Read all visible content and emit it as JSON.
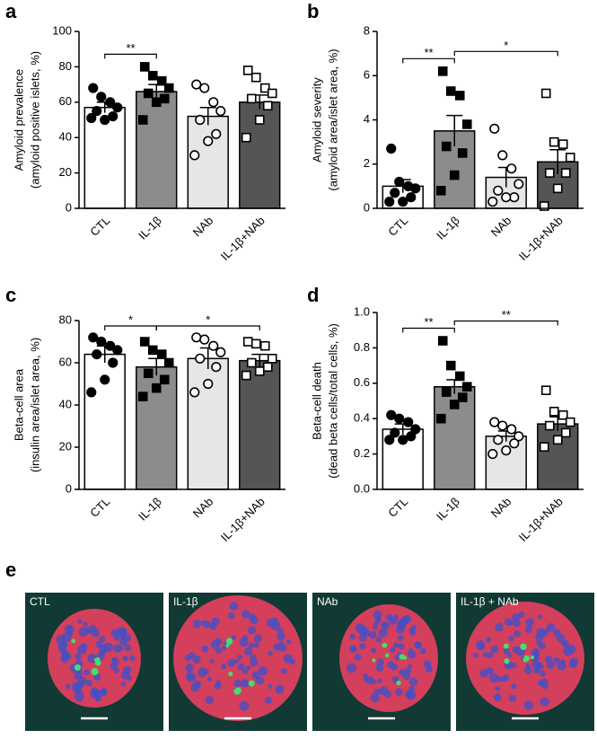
{
  "chart_data": [
    {
      "type": "bar",
      "panel": "a",
      "ylabel": [
        "Amyloid prevalence",
        "(amyloid positive islets, %)"
      ],
      "categories": [
        "CTL",
        "IL-1β",
        "NAb",
        "IL-1β+NAb"
      ],
      "values": [
        57,
        66,
        52,
        60
      ],
      "errors": [
        3,
        4,
        5,
        4
      ],
      "points": [
        [
          68,
          63,
          60,
          57,
          55,
          52,
          50,
          51
        ],
        [
          80,
          75,
          72,
          68,
          65,
          62,
          60,
          50
        ],
        [
          70,
          68,
          60,
          55,
          50,
          42,
          38,
          30
        ],
        [
          78,
          74,
          68,
          65,
          62,
          58,
          50,
          40
        ]
      ],
      "bar_colors": [
        "#ffffff",
        "#8c8c8c",
        "#e6e6e6",
        "#555555"
      ],
      "marker_shapes": [
        "circle",
        "square",
        "circle",
        "square"
      ],
      "marker_fills": [
        "#000000",
        "#000000",
        "#ffffff",
        "#ffffff"
      ],
      "ylim": [
        0,
        100
      ],
      "yticks": [
        0,
        20,
        40,
        60,
        80,
        100
      ],
      "brackets": [
        {
          "from": 0,
          "to": 1,
          "label": "**"
        }
      ]
    },
    {
      "type": "bar",
      "panel": "b",
      "ylabel": [
        "Amyloid severity",
        "(amyloid area/islet area, %)"
      ],
      "categories": [
        "CTL",
        "IL-1β",
        "NAb",
        "IL-1β+NAb"
      ],
      "values": [
        1.0,
        3.5,
        1.4,
        2.1
      ],
      "errors": [
        0.3,
        0.7,
        0.45,
        0.55
      ],
      "points": [
        [
          2.7,
          1.2,
          1.0,
          0.9,
          0.7,
          0.5,
          0.3,
          0.3
        ],
        [
          6.2,
          5.3,
          5.1,
          3.8,
          2.8,
          2.5,
          1.5,
          0.8
        ],
        [
          3.6,
          2.4,
          1.8,
          1.1,
          0.8,
          0.5,
          0.5,
          0.3
        ],
        [
          5.2,
          3.0,
          2.9,
          2.3,
          1.6,
          1.6,
          0.9,
          0.1
        ]
      ],
      "bar_colors": [
        "#ffffff",
        "#8c8c8c",
        "#e6e6e6",
        "#555555"
      ],
      "marker_shapes": [
        "circle",
        "square",
        "circle",
        "square"
      ],
      "marker_fills": [
        "#000000",
        "#000000",
        "#ffffff",
        "#ffffff"
      ],
      "ylim": [
        0,
        8
      ],
      "yticks": [
        0,
        2,
        4,
        6,
        8
      ],
      "brackets": [
        {
          "from": 0,
          "to": 1,
          "label": "**"
        },
        {
          "from": 1,
          "to": 3,
          "label": "*"
        }
      ]
    },
    {
      "type": "bar",
      "panel": "c",
      "ylabel": [
        "Beta-cell area",
        "(insulin area/islet area, %)"
      ],
      "categories": [
        "CTL",
        "IL-1β",
        "NAb",
        "IL-1β+NAb"
      ],
      "values": [
        64,
        58,
        62,
        61
      ],
      "errors": [
        4,
        4,
        5,
        3
      ],
      "points": [
        [
          72,
          70,
          68,
          66,
          64,
          60,
          52,
          46
        ],
        [
          70,
          66,
          64,
          60,
          55,
          52,
          48,
          44
        ],
        [
          72,
          71,
          68,
          65,
          62,
          58,
          50,
          46
        ],
        [
          70,
          69,
          68,
          62,
          60,
          58,
          56,
          54
        ]
      ],
      "bar_colors": [
        "#ffffff",
        "#8c8c8c",
        "#e6e6e6",
        "#555555"
      ],
      "marker_shapes": [
        "circle",
        "square",
        "circle",
        "square"
      ],
      "marker_fills": [
        "#000000",
        "#000000",
        "#ffffff",
        "#ffffff"
      ],
      "ylim": [
        0,
        80
      ],
      "yticks": [
        0,
        20,
        40,
        60,
        80
      ],
      "brackets": [
        {
          "from": 0,
          "to": 1,
          "label": "*"
        },
        {
          "from": 1,
          "to": 3,
          "label": "*"
        }
      ]
    },
    {
      "type": "bar",
      "panel": "d",
      "ylabel": [
        "Beta-cell death",
        "(dead beta cells/total cells, %)"
      ],
      "categories": [
        "CTL",
        "IL-1β",
        "NAb",
        "IL-1β+NAb"
      ],
      "values": [
        0.34,
        0.58,
        0.3,
        0.37
      ],
      "errors": [
        0.03,
        0.04,
        0.03,
        0.04
      ],
      "points": [
        [
          0.42,
          0.4,
          0.38,
          0.34,
          0.32,
          0.3,
          0.28,
          0.28
        ],
        [
          0.84,
          0.7,
          0.64,
          0.58,
          0.55,
          0.52,
          0.48,
          0.4
        ],
        [
          0.38,
          0.36,
          0.34,
          0.3,
          0.28,
          0.26,
          0.22,
          0.2
        ],
        [
          0.56,
          0.44,
          0.42,
          0.38,
          0.36,
          0.32,
          0.28,
          0.24
        ]
      ],
      "bar_colors": [
        "#ffffff",
        "#8c8c8c",
        "#e6e6e6",
        "#555555"
      ],
      "marker_shapes": [
        "circle",
        "square",
        "circle",
        "square"
      ],
      "marker_fills": [
        "#000000",
        "#000000",
        "#ffffff",
        "#ffffff"
      ],
      "ylim": [
        0,
        1
      ],
      "yticks": [
        {
          "value": 0,
          "label": "0.0"
        },
        0.2,
        0.4,
        0.6,
        0.8,
        {
          "value": 1,
          "label": "1.0"
        }
      ],
      "brackets": [
        {
          "from": 0,
          "to": 1,
          "label": "**"
        },
        {
          "from": 1,
          "to": 3,
          "label": "**"
        }
      ]
    }
  ],
  "images": {
    "panel": "e",
    "labels": [
      "CTL",
      "IL-1β",
      "NAb",
      "IL-1β + NAb"
    ]
  }
}
